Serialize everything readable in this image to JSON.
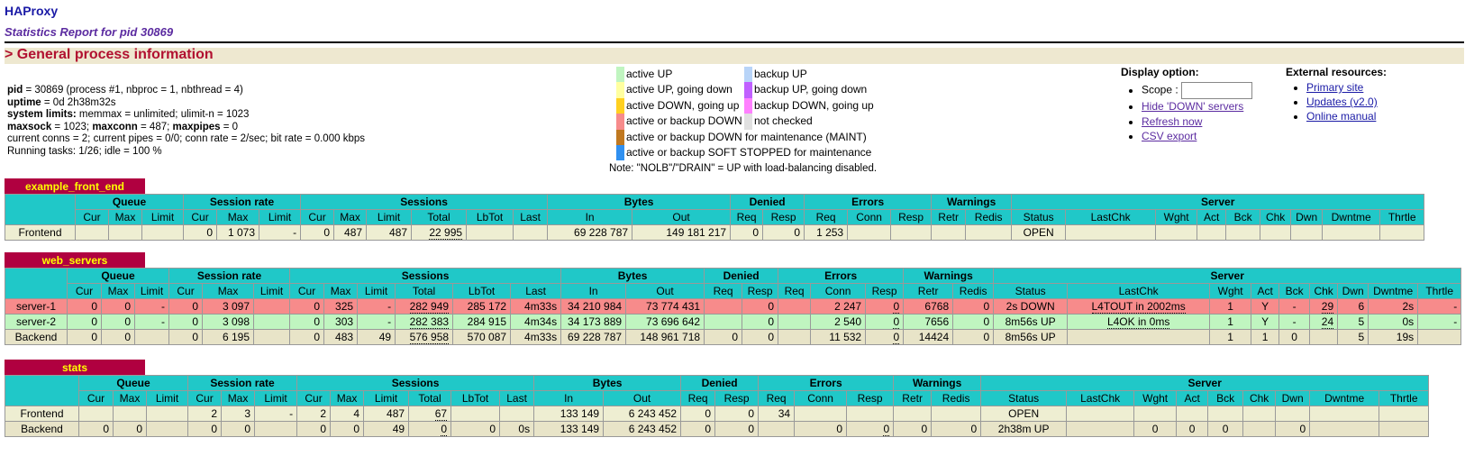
{
  "header": {
    "title": "HAProxy",
    "subtitle": "Statistics Report for pid 30869",
    "section": "> General process information"
  },
  "info": {
    "pid_label": "pid",
    "pid_text": " = 30869 (process #1, nbproc = 1, nbthread = 4)",
    "uptime_label": "uptime",
    "uptime_text": " = 0d 2h38m32s",
    "limits_label": "system limits:",
    "limits_text": " memmax = unlimited; ulimit-n = 1023",
    "maxsock_label": "maxsock",
    "maxsock_text": " = 1023; ",
    "maxconn_label": "maxconn",
    "maxconn_text": " = 487; ",
    "maxpipes_label": "maxpipes",
    "maxpipes_text": " = 0",
    "conns": "current conns = 2; current pipes = 0/0; conn rate = 2/sec; bit rate = 0.000 kbps",
    "tasks": "Running tasks: 1/26; idle = 100 %"
  },
  "legend": {
    "left": [
      {
        "color": "#c0f5c0",
        "label": "active UP"
      },
      {
        "color": "#ffffa0",
        "label": "active UP, going down"
      },
      {
        "color": "#ffd020",
        "label": "active DOWN, going up"
      },
      {
        "color": "#f78b8b",
        "label": "active or backup DOWN"
      },
      {
        "color": "#c07820",
        "label": "active or backup DOWN for maintenance (MAINT)"
      },
      {
        "color": "#3090f0",
        "label": "active or backup SOFT STOPPED for maintenance"
      }
    ],
    "right": [
      {
        "color": "#b8d4f8",
        "label": "backup UP"
      },
      {
        "color": "#c060ff",
        "label": "backup UP, going down"
      },
      {
        "color": "#ff80ff",
        "label": "backup DOWN, going up"
      },
      {
        "color": "#e0e0e0",
        "label": "not checked"
      }
    ],
    "note": "Note: \"NOLB\"/\"DRAIN\" = UP with load-balancing disabled."
  },
  "display": {
    "title": "Display option:",
    "scope_label": "Scope : ",
    "scope_value": "",
    "hide_down": "Hide 'DOWN' servers",
    "refresh": "Refresh now",
    "csv": "CSV export"
  },
  "external": {
    "title": "External resources:",
    "primary": "Primary site",
    "updates": "Updates (v2.0)",
    "manual": "Online manual"
  },
  "proxies": [
    {
      "name": "example_front_end",
      "rows": [
        {
          "type": "fe",
          "cells": [
            "Frontend",
            "",
            "",
            "",
            "0",
            "1 073",
            "-",
            "0",
            "487",
            "487",
            "22 995",
            "",
            "",
            "69 228 787",
            "149 181 217",
            "0",
            "0",
            "1 253",
            "",
            "",
            "",
            "",
            "OPEN",
            "",
            "",
            "",
            "",
            "",
            "",
            "",
            ""
          ]
        }
      ]
    },
    {
      "name": "web_servers",
      "rows": [
        {
          "type": "dn",
          "cells": [
            "server-1",
            "0",
            "0",
            "-",
            "0",
            "3 097",
            "",
            "0",
            "325",
            "-",
            "282 949",
            "285 172",
            "4m33s",
            "34 210 984",
            "73 774 431",
            "",
            "0",
            "",
            "2 247",
            "0",
            "6768",
            "0",
            "2s DOWN",
            "L4TOUT in 2002ms",
            "1",
            "Y",
            "-",
            "29",
            "6",
            "2s",
            "-"
          ]
        },
        {
          "type": "up",
          "cells": [
            "server-2",
            "0",
            "0",
            "-",
            "0",
            "3 098",
            "",
            "0",
            "303",
            "-",
            "282 383",
            "284 915",
            "4m34s",
            "34 173 889",
            "73 696 642",
            "",
            "0",
            "",
            "2 540",
            "0",
            "7656",
            "0",
            "8m56s UP",
            "L4OK in 0ms",
            "1",
            "Y",
            "-",
            "24",
            "5",
            "0s",
            "-"
          ]
        },
        {
          "type": "be",
          "cells": [
            "Backend",
            "0",
            "0",
            "",
            "0",
            "6 195",
            "",
            "0",
            "483",
            "49",
            "576 958",
            "570 087",
            "4m33s",
            "69 228 787",
            "148 961 718",
            "0",
            "0",
            "",
            "11 532",
            "0",
            "14424",
            "0",
            "8m56s UP",
            "",
            "1",
            "1",
            "0",
            "",
            "5",
            "19s",
            ""
          ]
        }
      ]
    },
    {
      "name": "stats",
      "rows": [
        {
          "type": "fe",
          "cells": [
            "Frontend",
            "",
            "",
            "",
            "2",
            "3",
            "-",
            "2",
            "4",
            "487",
            "67",
            "",
            "",
            "133 149",
            "6 243 452",
            "0",
            "0",
            "34",
            "",
            "",
            "",
            "",
            "OPEN",
            "",
            "",
            "",
            "",
            "",
            "",
            "",
            ""
          ]
        },
        {
          "type": "be",
          "cells": [
            "Backend",
            "0",
            "0",
            "",
            "0",
            "0",
            "",
            "0",
            "0",
            "49",
            "0",
            "0",
            "0s",
            "133 149",
            "6 243 452",
            "0",
            "0",
            "",
            "0",
            "0",
            "0",
            "0",
            "2h38m UP",
            "",
            "0",
            "0",
            "0",
            "",
            "0",
            "",
            ""
          ]
        }
      ]
    }
  ],
  "table_headers": {
    "groups": [
      "Queue",
      "Session rate",
      "Sessions",
      "Bytes",
      "Denied",
      "Errors",
      "Warnings",
      "Server"
    ],
    "cols": [
      "Cur",
      "Max",
      "Limit",
      "Cur",
      "Max",
      "Limit",
      "Cur",
      "Max",
      "Limit",
      "Total",
      "LbTot",
      "Last",
      "In",
      "Out",
      "Req",
      "Resp",
      "Req",
      "Conn",
      "Resp",
      "Retr",
      "Redis",
      "Status",
      "LastChk",
      "Wght",
      "Act",
      "Bck",
      "Chk",
      "Dwn",
      "Dwntme",
      "Thrtle"
    ]
  }
}
